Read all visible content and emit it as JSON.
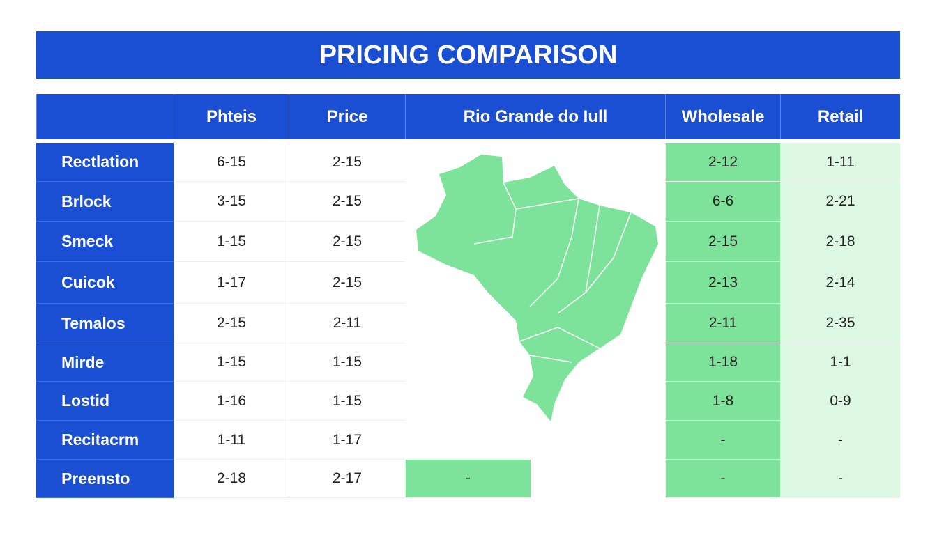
{
  "header": {
    "title": "PRICING COMPARISON"
  },
  "table": {
    "columns": [
      "Phteis",
      "Price",
      "Rio Grande do Iull",
      "Wholesale",
      "Retail"
    ],
    "rows": [
      {
        "label": "Rectlation",
        "phteis": "6-15",
        "price": "2-15",
        "wholesale": "2-12",
        "retail": "1-11"
      },
      {
        "label": "Brlock",
        "phteis": "3-15",
        "price": "2-15",
        "wholesale": "6-6",
        "retail": "2-21"
      },
      {
        "label": "Smeck",
        "phteis": "1-15",
        "price": "2-15",
        "wholesale": "2-15",
        "retail": "2-18"
      },
      {
        "label": "Cuicok",
        "phteis": "1-17",
        "price": "2-15",
        "wholesale": "2-13",
        "retail": "2-14"
      },
      {
        "label": "Temalos",
        "phteis": "2-15",
        "price": "2-11",
        "wholesale": "2-11",
        "retail": "2-35"
      },
      {
        "label": "Mirde",
        "phteis": "1-15",
        "price": "1-15",
        "wholesale": "1-18",
        "retail": "1-1"
      },
      {
        "label": "Lostid",
        "phteis": "1-16",
        "price": "1-15",
        "wholesale": "1-8",
        "retail": "0-9"
      },
      {
        "label": "Recitacrm",
        "phteis": "1-11",
        "price": "1-17",
        "wholesale": "-",
        "retail": "-"
      },
      {
        "label": "Preensto",
        "phteis": "2-18",
        "price": "2-17",
        "region": "-",
        "wholesale": "-",
        "retail": "-"
      }
    ]
  }
}
